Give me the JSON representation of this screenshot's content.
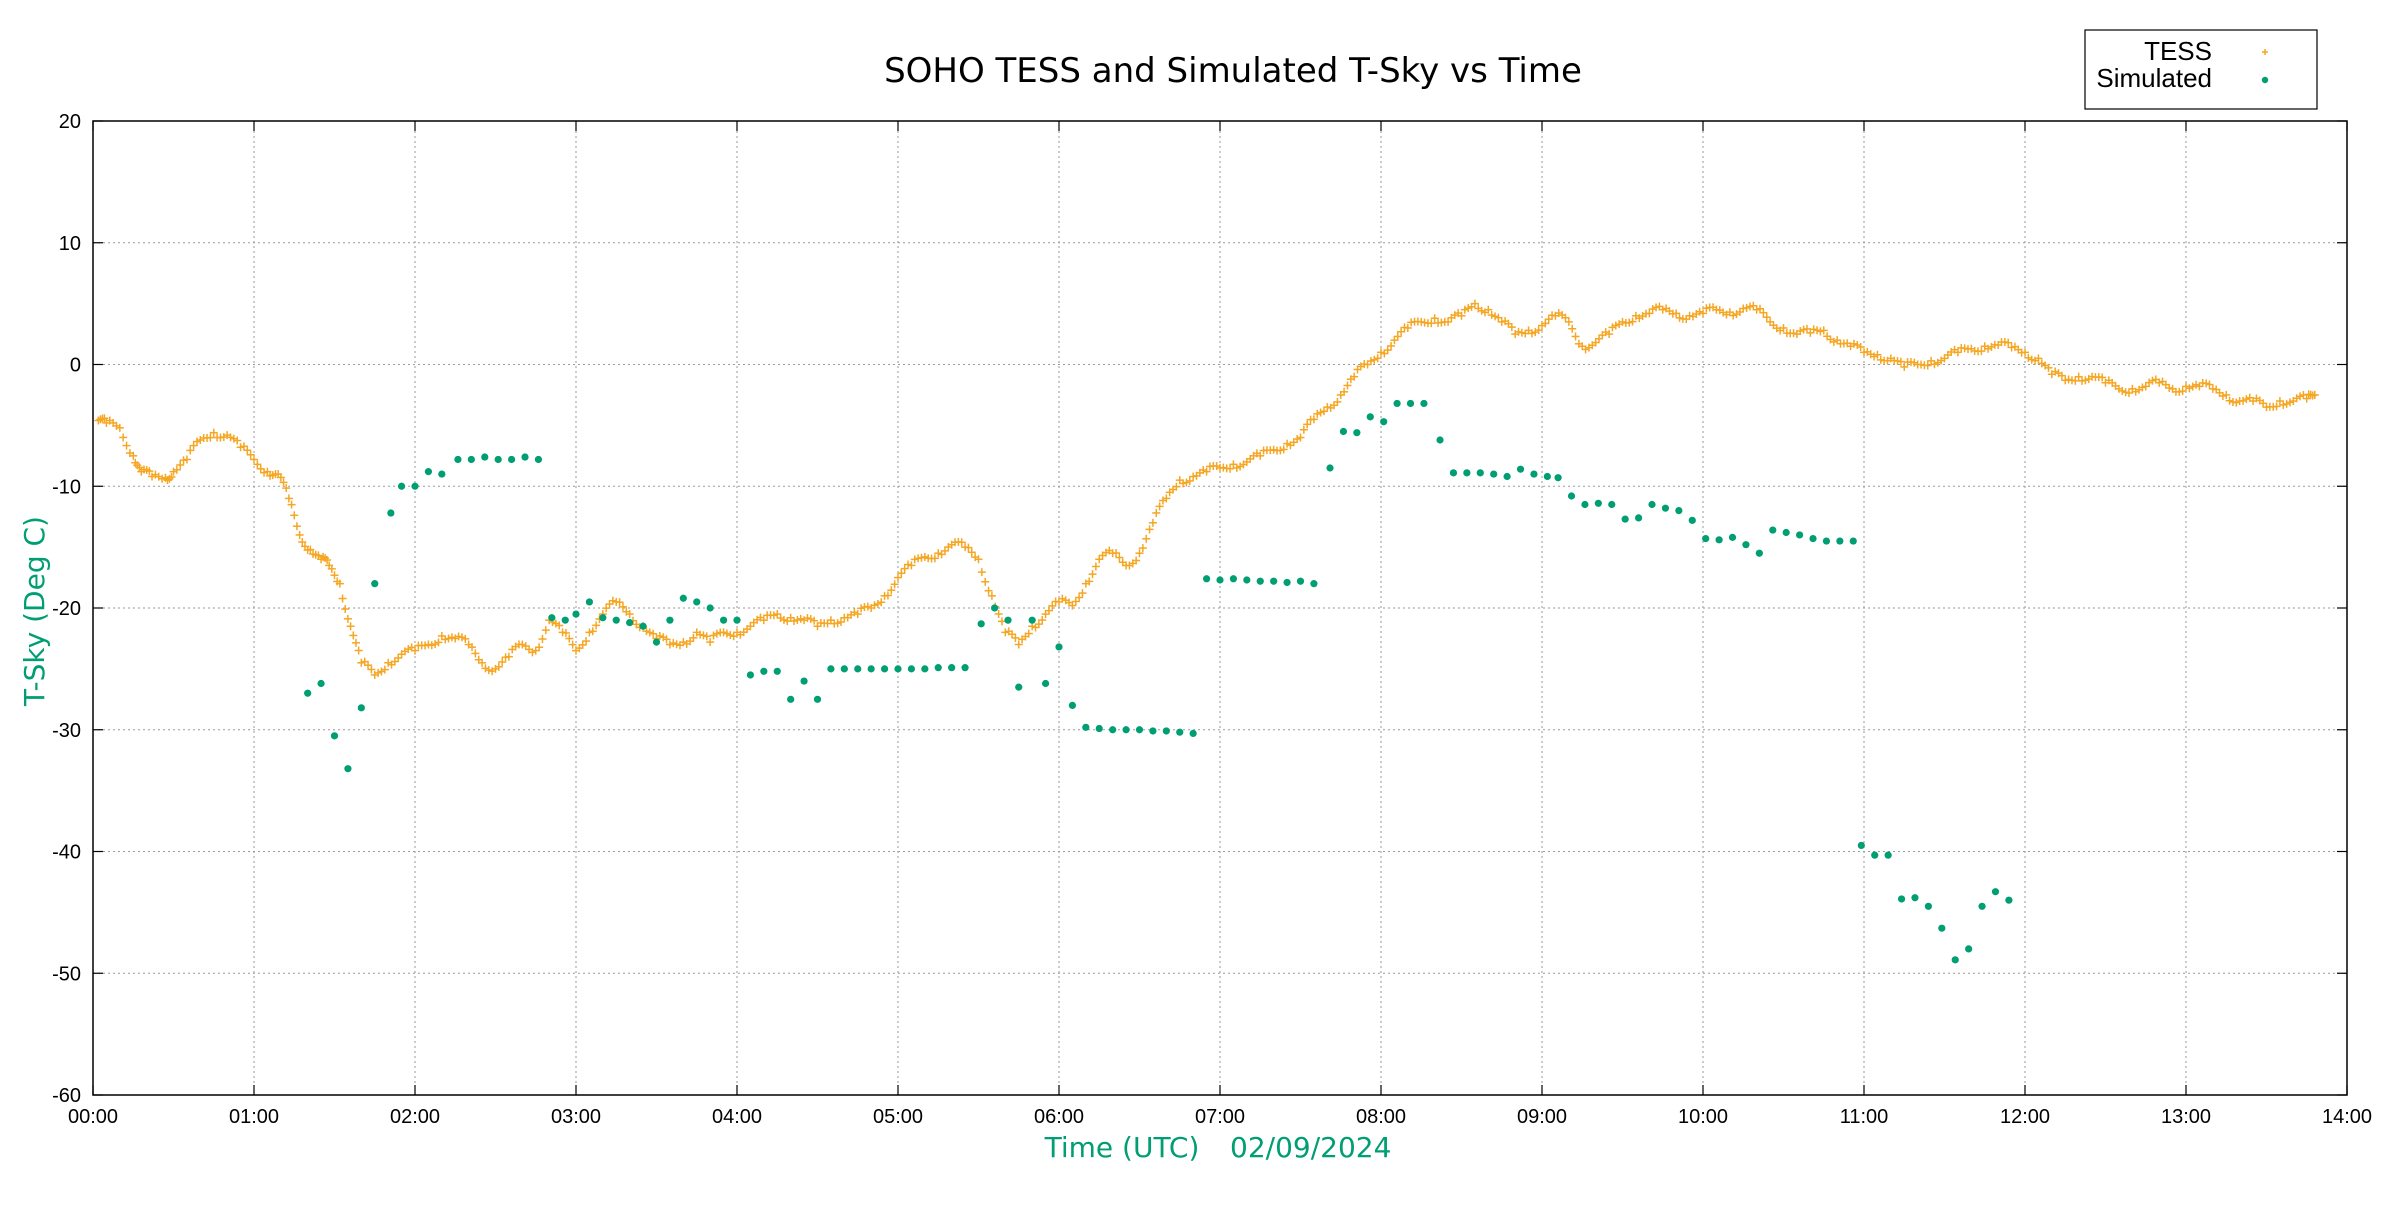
{
  "chart_data": {
    "type": "scatter",
    "title": "SOHO TESS and Simulated T-Sky vs Time",
    "xlabel": "Time (UTC)",
    "xlabel_date": "02/09/2024",
    "ylabel": "T-Sky (Deg C)",
    "xlim_hours": [
      0,
      14
    ],
    "ylim": [
      -60,
      20
    ],
    "x_ticks": [
      "00:00",
      "01:00",
      "02:00",
      "03:00",
      "04:00",
      "05:00",
      "06:00",
      "07:00",
      "08:00",
      "09:00",
      "10:00",
      "11:00",
      "12:00",
      "13:00",
      "14:00"
    ],
    "y_ticks": [
      "20",
      "10",
      "0",
      "-10",
      "-20",
      "-30",
      "-40",
      "-50",
      "-60"
    ],
    "grid": true,
    "legend_position": "top-right",
    "colors": {
      "tess": "#F5A623",
      "simulated": "#009E73",
      "axis_label": "#009E73"
    },
    "series": [
      {
        "name": "TESS",
        "marker": "plus",
        "points": [
          [
            "00:02",
            -4.6
          ],
          [
            "00:05",
            -4.8
          ],
          [
            "00:10",
            -5.2
          ],
          [
            "00:15",
            -7.5
          ],
          [
            "00:18",
            -8.8
          ],
          [
            "00:22",
            -9.2
          ],
          [
            "00:27",
            -9.3
          ],
          [
            "00:30",
            -8.8
          ],
          [
            "00:35",
            -7.8
          ],
          [
            "00:40",
            -6.2
          ],
          [
            "00:45",
            -5.6
          ],
          [
            "00:50",
            -5.8
          ],
          [
            "00:55",
            -6.8
          ],
          [
            "01:00",
            -7.8
          ],
          [
            "01:05",
            -8.8
          ],
          [
            "01:09",
            -9.0
          ],
          [
            "01:13",
            -11.0
          ],
          [
            "01:17",
            -14.0
          ],
          [
            "01:21",
            -15.2
          ],
          [
            "01:25",
            -16.0
          ],
          [
            "01:28",
            -16.5
          ],
          [
            "01:32",
            -18.0
          ],
          [
            "01:36",
            -21.5
          ],
          [
            "01:40",
            -24.5
          ],
          [
            "01:45",
            -25.5
          ],
          [
            "01:50",
            -24.5
          ],
          [
            "01:55",
            -23.8
          ],
          [
            "02:00",
            -23.5
          ],
          [
            "02:05",
            -23.0
          ],
          [
            "02:10",
            -22.3
          ],
          [
            "02:15",
            -22.5
          ],
          [
            "02:20",
            -23.0
          ],
          [
            "02:25",
            -24.5
          ],
          [
            "02:30",
            -25.0
          ],
          [
            "02:35",
            -24.0
          ],
          [
            "02:40",
            -23.0
          ],
          [
            "02:45",
            -23.5
          ],
          [
            "02:50",
            -21.0
          ],
          [
            "02:55",
            -22.0
          ],
          [
            "03:00",
            -23.5
          ],
          [
            "03:05",
            -22.0
          ],
          [
            "03:10",
            -20.5
          ],
          [
            "03:15",
            -19.5
          ],
          [
            "03:20",
            -20.5
          ],
          [
            "03:25",
            -21.5
          ],
          [
            "03:30",
            -22.5
          ],
          [
            "03:35",
            -23.0
          ],
          [
            "03:40",
            -22.8
          ],
          [
            "03:45",
            -22.0
          ],
          [
            "03:50",
            -22.8
          ],
          [
            "03:55",
            -22.0
          ],
          [
            "04:00",
            -22.0
          ],
          [
            "04:05",
            -21.5
          ],
          [
            "04:10",
            -21.0
          ],
          [
            "04:15",
            -20.5
          ],
          [
            "04:20",
            -20.8
          ],
          [
            "04:25",
            -21.0
          ],
          [
            "04:30",
            -21.5
          ],
          [
            "04:35",
            -21.0
          ],
          [
            "04:40",
            -20.8
          ],
          [
            "04:45",
            -20.5
          ],
          [
            "04:50",
            -20.0
          ],
          [
            "04:55",
            -19.0
          ],
          [
            "05:00",
            -17.5
          ],
          [
            "05:05",
            -16.5
          ],
          [
            "05:10",
            -15.8
          ],
          [
            "05:15",
            -15.5
          ],
          [
            "05:20",
            -14.8
          ],
          [
            "05:25",
            -15.0
          ],
          [
            "05:30",
            -16.0
          ],
          [
            "05:35",
            -19.0
          ],
          [
            "05:40",
            -22.0
          ],
          [
            "05:45",
            -23.0
          ],
          [
            "05:50",
            -21.5
          ],
          [
            "05:55",
            -20.5
          ],
          [
            "06:00",
            -19.5
          ],
          [
            "06:05",
            -19.8
          ],
          [
            "06:10",
            -18.0
          ],
          [
            "06:15",
            -16.0
          ],
          [
            "06:20",
            -15.5
          ],
          [
            "06:25",
            -16.5
          ],
          [
            "06:30",
            -15.5
          ],
          [
            "06:35",
            -13.0
          ],
          [
            "06:40",
            -11.0
          ],
          [
            "06:45",
            -9.5
          ],
          [
            "06:50",
            -9.2
          ],
          [
            "06:55",
            -8.8
          ],
          [
            "07:00",
            -8.5
          ],
          [
            "07:05",
            -8.2
          ],
          [
            "07:10",
            -8.0
          ],
          [
            "07:15",
            -7.5
          ],
          [
            "07:20",
            -7.0
          ],
          [
            "07:25",
            -6.5
          ],
          [
            "07:30",
            -6.0
          ],
          [
            "07:35",
            -4.5
          ],
          [
            "07:40",
            -3.5
          ],
          [
            "07:45",
            -2.5
          ],
          [
            "07:50",
            -1.0
          ],
          [
            "07:55",
            0.0
          ],
          [
            "08:00",
            1.0
          ],
          [
            "08:05",
            2.0
          ],
          [
            "08:10",
            3.0
          ],
          [
            "08:15",
            3.5
          ],
          [
            "08:20",
            3.8
          ],
          [
            "08:25",
            3.5
          ],
          [
            "08:30",
            4.0
          ],
          [
            "08:35",
            5.0
          ],
          [
            "08:40",
            4.5
          ],
          [
            "08:45",
            3.5
          ],
          [
            "08:50",
            2.5
          ],
          [
            "08:55",
            2.8
          ],
          [
            "09:00",
            3.2
          ],
          [
            "09:05",
            4.0
          ],
          [
            "09:10",
            3.5
          ],
          [
            "09:15",
            1.5
          ],
          [
            "09:20",
            1.8
          ],
          [
            "09:25",
            2.5
          ],
          [
            "09:30",
            3.5
          ],
          [
            "09:35",
            4.0
          ],
          [
            "09:40",
            4.2
          ],
          [
            "09:45",
            4.5
          ],
          [
            "09:50",
            4.2
          ],
          [
            "09:55",
            4.0
          ],
          [
            "10:00",
            4.2
          ],
          [
            "10:05",
            4.5
          ],
          [
            "10:10",
            4.3
          ],
          [
            "10:15",
            4.6
          ],
          [
            "10:20",
            4.5
          ],
          [
            "10:25",
            3.5
          ],
          [
            "10:30",
            3.0
          ],
          [
            "10:35",
            2.5
          ],
          [
            "10:40",
            2.6
          ],
          [
            "10:45",
            2.8
          ],
          [
            "10:50",
            2.0
          ],
          [
            "10:55",
            1.5
          ],
          [
            "11:00",
            1.0
          ],
          [
            "11:05",
            0.8
          ],
          [
            "11:10",
            0.5
          ],
          [
            "11:15",
            -0.2
          ],
          [
            "11:20",
            0.0
          ],
          [
            "11:25",
            0.3
          ],
          [
            "11:30",
            0.5
          ],
          [
            "11:35",
            1.0
          ],
          [
            "11:40",
            1.3
          ],
          [
            "11:45",
            1.5
          ],
          [
            "11:50",
            1.6
          ],
          [
            "11:55",
            1.4
          ],
          [
            "12:00",
            1.0
          ],
          [
            "12:05",
            0.5
          ],
          [
            "12:10",
            -0.8
          ],
          [
            "12:15",
            -1.3
          ],
          [
            "12:20",
            -1.0
          ],
          [
            "12:25",
            -1.0
          ],
          [
            "12:30",
            -1.5
          ],
          [
            "12:35",
            -2.0
          ],
          [
            "12:40",
            -2.0
          ],
          [
            "12:45",
            -1.8
          ],
          [
            "12:50",
            -1.5
          ],
          [
            "12:55",
            -2.0
          ],
          [
            "13:00",
            -1.8
          ],
          [
            "13:05",
            -1.8
          ],
          [
            "13:10",
            -2.0
          ],
          [
            "13:15",
            -2.5
          ],
          [
            "13:20",
            -3.0
          ],
          [
            "13:25",
            -3.0
          ],
          [
            "13:30",
            -3.5
          ],
          [
            "13:35",
            -3.0
          ],
          [
            "13:40",
            -3.0
          ],
          [
            "13:45",
            -2.8
          ],
          [
            "13:48",
            -2.5
          ]
        ]
      },
      {
        "name": "Simulated",
        "marker": "dot",
        "points": [
          [
            "01:20",
            -27.0
          ],
          [
            "01:25",
            -26.2
          ],
          [
            "01:30",
            -30.5
          ],
          [
            "01:35",
            -33.2
          ],
          [
            "01:40",
            -28.2
          ],
          [
            "01:45",
            -18.0
          ],
          [
            "01:51",
            -12.2
          ],
          [
            "01:55",
            -10.0
          ],
          [
            "02:00",
            -10.0
          ],
          [
            "02:05",
            -8.8
          ],
          [
            "02:10",
            -9.0
          ],
          [
            "02:16",
            -7.8
          ],
          [
            "02:21",
            -7.8
          ],
          [
            "02:26",
            -7.6
          ],
          [
            "02:31",
            -7.8
          ],
          [
            "02:36",
            -7.8
          ],
          [
            "02:41",
            -7.6
          ],
          [
            "02:46",
            -7.8
          ],
          [
            "02:51",
            -20.8
          ],
          [
            "02:56",
            -21.0
          ],
          [
            "03:00",
            -20.5
          ],
          [
            "03:05",
            -19.5
          ],
          [
            "03:10",
            -20.8
          ],
          [
            "03:15",
            -21.0
          ],
          [
            "03:20",
            -21.2
          ],
          [
            "03:25",
            -21.5
          ],
          [
            "03:30",
            -22.8
          ],
          [
            "03:35",
            -21.0
          ],
          [
            "03:40",
            -19.2
          ],
          [
            "03:45",
            -19.5
          ],
          [
            "03:50",
            -20.0
          ],
          [
            "03:55",
            -21.0
          ],
          [
            "04:00",
            -21.0
          ],
          [
            "04:05",
            -25.5
          ],
          [
            "04:10",
            -25.2
          ],
          [
            "04:15",
            -25.2
          ],
          [
            "04:20",
            -27.5
          ],
          [
            "04:25",
            -26.0
          ],
          [
            "04:30",
            -27.5
          ],
          [
            "04:35",
            -25.0
          ],
          [
            "04:40",
            -25.0
          ],
          [
            "04:45",
            -25.0
          ],
          [
            "04:50",
            -25.0
          ],
          [
            "04:55",
            -25.0
          ],
          [
            "05:00",
            -25.0
          ],
          [
            "05:05",
            -25.0
          ],
          [
            "05:10",
            -25.0
          ],
          [
            "05:15",
            -24.9
          ],
          [
            "05:20",
            -24.9
          ],
          [
            "05:25",
            -24.9
          ],
          [
            "05:31",
            -21.3
          ],
          [
            "05:36",
            -20.0
          ],
          [
            "05:41",
            -21.0
          ],
          [
            "05:45",
            -26.5
          ],
          [
            "05:50",
            -21.0
          ],
          [
            "05:55",
            -26.2
          ],
          [
            "06:00",
            -23.2
          ],
          [
            "06:05",
            -28.0
          ],
          [
            "06:10",
            -29.8
          ],
          [
            "06:15",
            -29.9
          ],
          [
            "06:20",
            -30.0
          ],
          [
            "06:25",
            -30.0
          ],
          [
            "06:30",
            -30.0
          ],
          [
            "06:35",
            -30.1
          ],
          [
            "06:40",
            -30.1
          ],
          [
            "06:45",
            -30.2
          ],
          [
            "06:50",
            -30.3
          ],
          [
            "06:55",
            -17.6
          ],
          [
            "07:00",
            -17.7
          ],
          [
            "07:05",
            -17.6
          ],
          [
            "07:10",
            -17.7
          ],
          [
            "07:15",
            -17.8
          ],
          [
            "07:20",
            -17.8
          ],
          [
            "07:25",
            -17.9
          ],
          [
            "07:30",
            -17.8
          ],
          [
            "07:35",
            -18.0
          ],
          [
            "07:41",
            -8.5
          ],
          [
            "07:46",
            -5.5
          ],
          [
            "07:51",
            -5.6
          ],
          [
            "07:56",
            -4.3
          ],
          [
            "08:01",
            -4.7
          ],
          [
            "08:06",
            -3.2
          ],
          [
            "08:11",
            -3.2
          ],
          [
            "08:16",
            -3.2
          ],
          [
            "08:22",
            -6.2
          ],
          [
            "08:27",
            -8.9
          ],
          [
            "08:32",
            -8.9
          ],
          [
            "08:37",
            -8.9
          ],
          [
            "08:42",
            -9.0
          ],
          [
            "08:47",
            -9.2
          ],
          [
            "08:52",
            -8.6
          ],
          [
            "08:57",
            -9.0
          ],
          [
            "09:02",
            -9.2
          ],
          [
            "09:06",
            -9.3
          ],
          [
            "09:11",
            -10.8
          ],
          [
            "09:16",
            -11.5
          ],
          [
            "09:21",
            -11.4
          ],
          [
            "09:26",
            -11.5
          ],
          [
            "09:31",
            -12.7
          ],
          [
            "09:36",
            -12.6
          ],
          [
            "09:41",
            -11.5
          ],
          [
            "09:46",
            -11.8
          ],
          [
            "09:51",
            -12.0
          ],
          [
            "09:56",
            -12.8
          ],
          [
            "10:01",
            -14.3
          ],
          [
            "10:06",
            -14.4
          ],
          [
            "10:11",
            -14.2
          ],
          [
            "10:16",
            -14.8
          ],
          [
            "10:21",
            -15.5
          ],
          [
            "10:26",
            -13.6
          ],
          [
            "10:31",
            -13.8
          ],
          [
            "10:36",
            -14.0
          ],
          [
            "10:41",
            -14.3
          ],
          [
            "10:46",
            -14.5
          ],
          [
            "10:51",
            -14.5
          ],
          [
            "10:56",
            -14.5
          ],
          [
            "10:59",
            -39.5
          ],
          [
            "11:04",
            -40.3
          ],
          [
            "11:09",
            -40.3
          ],
          [
            "11:14",
            -43.9
          ],
          [
            "11:19",
            -43.8
          ],
          [
            "11:24",
            -44.5
          ],
          [
            "11:29",
            -46.3
          ],
          [
            "11:34",
            -48.9
          ],
          [
            "11:39",
            -48.0
          ],
          [
            "11:44",
            -44.5
          ],
          [
            "11:49",
            -43.3
          ],
          [
            "11:54",
            -44.0
          ]
        ]
      }
    ]
  }
}
